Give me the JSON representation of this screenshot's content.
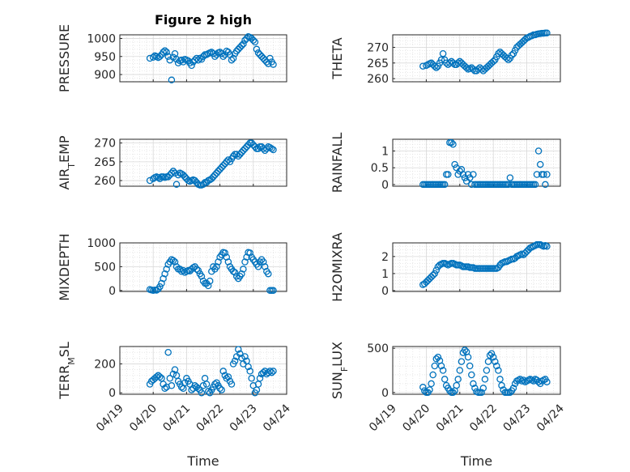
{
  "figure": {
    "title": "Figure 2 high",
    "marker_color": "#0072BD"
  },
  "chart_data": [
    {
      "type": "scatter",
      "ylabel": "PRESSURE",
      "ylabel_sub": "",
      "ylabel_tail": "",
      "ylim": [
        880,
        1010
      ],
      "yticks": [
        900,
        950,
        1000
      ],
      "xlim": [
        19.0,
        24.0
      ],
      "x": [
        19.9,
        20.0,
        20.05,
        20.1,
        20.15,
        20.2,
        20.25,
        20.3,
        20.35,
        20.4,
        20.45,
        20.5,
        20.55,
        20.6,
        20.65,
        20.7,
        20.75,
        20.8,
        20.85,
        20.9,
        20.95,
        21.0,
        21.05,
        21.1,
        21.15,
        21.2,
        21.25,
        21.3,
        21.35,
        21.4,
        21.45,
        21.5,
        21.55,
        21.6,
        21.65,
        21.7,
        21.75,
        21.8,
        21.85,
        21.9,
        21.95,
        22.0,
        22.05,
        22.1,
        22.15,
        22.2,
        22.25,
        22.3,
        22.35,
        22.4,
        22.45,
        22.5,
        22.55,
        22.6,
        22.65,
        22.7,
        22.75,
        22.8,
        22.85,
        22.9,
        22.95,
        23.0,
        23.05,
        23.1,
        23.15,
        23.2,
        23.25,
        23.3,
        23.35,
        23.4,
        23.45,
        23.5,
        23.55,
        23.6
      ],
      "y": [
        945,
        948,
        952,
        950,
        947,
        950,
        955,
        962,
        966,
        962,
        950,
        940,
        885,
        948,
        958,
        942,
        932,
        938,
        940,
        935,
        942,
        940,
        938,
        932,
        925,
        935,
        940,
        945,
        940,
        945,
        942,
        950,
        955,
        955,
        958,
        960,
        962,
        958,
        950,
        955,
        960,
        962,
        958,
        950,
        955,
        965,
        962,
        955,
        940,
        945,
        958,
        965,
        970,
        975,
        980,
        985,
        995,
        1000,
        1005,
        1003,
        1000,
        995,
        990,
        970,
        960,
        955,
        950,
        945,
        940,
        935,
        930,
        945,
        935,
        928
      ]
    },
    {
      "type": "scatter",
      "ylabel": "THETA",
      "ylabel_sub": "",
      "ylabel_tail": "",
      "ylim": [
        259,
        274
      ],
      "yticks": [
        260,
        265,
        270
      ],
      "xlim": [
        19.0,
        24.0
      ],
      "x": [
        19.9,
        20.0,
        20.05,
        20.1,
        20.15,
        20.2,
        20.25,
        20.3,
        20.35,
        20.4,
        20.45,
        20.5,
        20.55,
        20.6,
        20.65,
        20.7,
        20.75,
        20.8,
        20.85,
        20.9,
        20.95,
        21.0,
        21.05,
        21.1,
        21.15,
        21.2,
        21.25,
        21.3,
        21.35,
        21.4,
        21.45,
        21.5,
        21.55,
        21.6,
        21.65,
        21.7,
        21.75,
        21.8,
        21.85,
        21.9,
        21.95,
        22.0,
        22.05,
        22.1,
        22.15,
        22.2,
        22.25,
        22.3,
        22.35,
        22.4,
        22.45,
        22.5,
        22.55,
        22.6,
        22.65,
        22.7,
        22.75,
        22.8,
        22.85,
        22.9,
        22.95,
        23.0,
        23.05,
        23.1,
        23.15,
        23.2,
        23.25,
        23.3,
        23.35,
        23.4,
        23.45,
        23.5,
        23.55,
        23.6
      ],
      "y": [
        264,
        264.2,
        264.5,
        264.8,
        265,
        264.5,
        264,
        263.5,
        264,
        265,
        266,
        268,
        266,
        265,
        264.5,
        265,
        265.5,
        265,
        264.5,
        264.5,
        265,
        265.5,
        265,
        264.5,
        264,
        263.5,
        263,
        263.2,
        263.5,
        263,
        262.5,
        262.5,
        263,
        263.5,
        263,
        262.5,
        263,
        263.5,
        264,
        264.5,
        265,
        265.5,
        266,
        267,
        268,
        268.5,
        268,
        267.5,
        267,
        266.5,
        266,
        266.5,
        267.5,
        268,
        269,
        270,
        270.5,
        271,
        271.5,
        272,
        272.5,
        273,
        273.2,
        273.5,
        273.7,
        274,
        274,
        274.2,
        274.3,
        274.4,
        274.5,
        274.5,
        274.6,
        274.6
      ]
    },
    {
      "type": "scatter",
      "ylabel": "AIR",
      "ylabel_sub": "T",
      "ylabel_tail": "EMP",
      "ylim": [
        258.5,
        271
      ],
      "yticks": [
        260,
        265,
        270
      ],
      "xlim": [
        19.0,
        24.0
      ],
      "x": [
        19.9,
        20.0,
        20.05,
        20.1,
        20.15,
        20.2,
        20.25,
        20.3,
        20.35,
        20.4,
        20.45,
        20.5,
        20.55,
        20.6,
        20.65,
        20.7,
        20.75,
        20.8,
        20.85,
        20.9,
        20.95,
        21.0,
        21.05,
        21.1,
        21.15,
        21.2,
        21.25,
        21.3,
        21.35,
        21.4,
        21.45,
        21.5,
        21.55,
        21.6,
        21.65,
        21.7,
        21.75,
        21.8,
        21.85,
        21.9,
        21.95,
        22.0,
        22.05,
        22.1,
        22.15,
        22.2,
        22.25,
        22.3,
        22.35,
        22.4,
        22.45,
        22.5,
        22.55,
        22.6,
        22.65,
        22.7,
        22.75,
        22.8,
        22.85,
        22.9,
        22.95,
        23.0,
        23.05,
        23.1,
        23.15,
        23.2,
        23.25,
        23.3,
        23.35,
        23.4,
        23.45,
        23.5,
        23.55,
        23.6
      ],
      "y": [
        260,
        260.5,
        260.8,
        261,
        260.8,
        260.5,
        261,
        261,
        260.8,
        261,
        261,
        261.5,
        262,
        262.5,
        262,
        259,
        261.5,
        262,
        261.8,
        261.5,
        261,
        260.5,
        260,
        259.8,
        260,
        260.2,
        260,
        259.5,
        259,
        258.8,
        258.8,
        259,
        259.5,
        259.5,
        260,
        260.2,
        260.5,
        261,
        261.5,
        262,
        262.5,
        263,
        263.5,
        264,
        264.5,
        265,
        265.5,
        265,
        265.8,
        266.5,
        267,
        267,
        266.5,
        267,
        267.5,
        268,
        268.5,
        269,
        269.5,
        270,
        270,
        269.5,
        269,
        268.5,
        268.5,
        269,
        269,
        268.5,
        268,
        268.5,
        269,
        268.8,
        268.5,
        268.2
      ]
    },
    {
      "type": "scatter",
      "ylabel": "RAINFALL",
      "ylabel_sub": "",
      "ylabel_tail": "",
      "ylim": [
        -0.05,
        1.35
      ],
      "yticks": [
        0,
        0.5,
        1
      ],
      "xlim": [
        19.0,
        24.0
      ],
      "x": [
        19.9,
        19.95,
        20.0,
        20.05,
        20.1,
        20.15,
        20.2,
        20.25,
        20.3,
        20.35,
        20.4,
        20.45,
        20.5,
        20.55,
        20.6,
        20.65,
        20.7,
        20.75,
        20.8,
        20.85,
        20.9,
        20.95,
        21.0,
        21.05,
        21.1,
        21.15,
        21.2,
        21.25,
        21.3,
        21.35,
        21.4,
        21.45,
        21.5,
        21.55,
        21.6,
        21.65,
        21.7,
        21.75,
        21.8,
        21.85,
        21.9,
        21.95,
        22.0,
        22.05,
        22.1,
        22.15,
        22.2,
        22.25,
        22.3,
        22.35,
        22.4,
        22.45,
        22.5,
        22.55,
        22.6,
        22.65,
        22.7,
        22.75,
        22.8,
        22.85,
        22.9,
        22.95,
        23.0,
        23.05,
        23.1,
        23.15,
        23.2,
        23.25,
        23.3,
        23.35,
        23.4,
        23.45,
        23.5,
        23.55,
        23.6
      ],
      "y": [
        0,
        0,
        0,
        0,
        0,
        0,
        0,
        0,
        0,
        0,
        0,
        0,
        0,
        0,
        0.3,
        0.3,
        1.25,
        1.25,
        1.2,
        0.6,
        0.5,
        0.3,
        0.4,
        0.45,
        0.3,
        0.2,
        0.1,
        0.3,
        0.2,
        0,
        0.3,
        0,
        0,
        0,
        0,
        0,
        0,
        0,
        0,
        0,
        0,
        0,
        0,
        0,
        0,
        0,
        0,
        0,
        0,
        0,
        0,
        0,
        0.2,
        0,
        0,
        0,
        0,
        0,
        0,
        0,
        0,
        0,
        0,
        0,
        0,
        0,
        0,
        0,
        0.3,
        1.0,
        0.6,
        0.3,
        0.3,
        0,
        0.3
      ]
    },
    {
      "type": "scatter",
      "ylabel": "MIXDEPTH",
      "ylabel_sub": "",
      "ylabel_tail": "",
      "ylim": [
        -20,
        1000
      ],
      "yticks": [
        0,
        500,
        1000
      ],
      "xlim": [
        19.0,
        24.0
      ],
      "x": [
        19.9,
        19.95,
        20.0,
        20.05,
        20.1,
        20.15,
        20.2,
        20.25,
        20.3,
        20.35,
        20.4,
        20.45,
        20.5,
        20.55,
        20.6,
        20.65,
        20.7,
        20.75,
        20.8,
        20.85,
        20.9,
        20.95,
        21.0,
        21.05,
        21.1,
        21.15,
        21.2,
        21.25,
        21.3,
        21.35,
        21.4,
        21.45,
        21.5,
        21.55,
        21.6,
        21.65,
        21.7,
        21.75,
        21.8,
        21.85,
        21.9,
        21.95,
        22.0,
        22.05,
        22.1,
        22.15,
        22.2,
        22.25,
        22.3,
        22.35,
        22.4,
        22.45,
        22.5,
        22.55,
        22.6,
        22.65,
        22.7,
        22.75,
        22.8,
        22.85,
        22.9,
        22.95,
        23.0,
        23.05,
        23.1,
        23.15,
        23.2,
        23.25,
        23.3,
        23.35,
        23.4,
        23.45,
        23.5,
        23.55,
        23.6
      ],
      "y": [
        20,
        10,
        0,
        10,
        5,
        30,
        80,
        150,
        250,
        350,
        450,
        550,
        600,
        650,
        630,
        600,
        500,
        450,
        450,
        400,
        420,
        380,
        400,
        420,
        410,
        450,
        480,
        500,
        450,
        420,
        350,
        300,
        200,
        150,
        150,
        100,
        200,
        400,
        500,
        450,
        500,
        600,
        700,
        750,
        800,
        790,
        700,
        600,
        500,
        450,
        400,
        380,
        300,
        250,
        300,
        350,
        450,
        600,
        700,
        800,
        790,
        700,
        650,
        600,
        550,
        500,
        600,
        650,
        600,
        500,
        400,
        350,
        0,
        0,
        0
      ]
    },
    {
      "type": "scatter",
      "ylabel": "H2OMIXRA",
      "ylabel_sub": "",
      "ylabel_tail": "",
      "ylim": [
        -0.05,
        2.8
      ],
      "yticks": [
        0,
        1,
        2
      ],
      "xlim": [
        19.0,
        24.0
      ],
      "x": [
        19.9,
        19.95,
        20.0,
        20.05,
        20.1,
        20.15,
        20.2,
        20.25,
        20.3,
        20.35,
        20.4,
        20.45,
        20.5,
        20.55,
        20.6,
        20.65,
        20.7,
        20.75,
        20.8,
        20.85,
        20.9,
        20.95,
        21.0,
        21.05,
        21.1,
        21.15,
        21.2,
        21.25,
        21.3,
        21.35,
        21.4,
        21.45,
        21.5,
        21.55,
        21.6,
        21.65,
        21.7,
        21.75,
        21.8,
        21.85,
        21.9,
        21.95,
        22.0,
        22.05,
        22.1,
        22.15,
        22.2,
        22.25,
        22.3,
        22.35,
        22.4,
        22.45,
        22.5,
        22.55,
        22.6,
        22.65,
        22.7,
        22.75,
        22.8,
        22.85,
        22.9,
        22.95,
        23.0,
        23.05,
        23.1,
        23.15,
        23.2,
        23.25,
        23.3,
        23.35,
        23.4,
        23.45,
        23.5,
        23.55,
        23.6
      ],
      "y": [
        0.35,
        0.4,
        0.5,
        0.6,
        0.7,
        0.8,
        0.9,
        1.0,
        1.2,
        1.4,
        1.5,
        1.55,
        1.6,
        1.6,
        1.55,
        1.5,
        1.55,
        1.6,
        1.6,
        1.55,
        1.5,
        1.5,
        1.5,
        1.45,
        1.4,
        1.4,
        1.4,
        1.4,
        1.35,
        1.35,
        1.35,
        1.3,
        1.3,
        1.3,
        1.3,
        1.3,
        1.3,
        1.3,
        1.3,
        1.3,
        1.3,
        1.3,
        1.3,
        1.3,
        1.3,
        1.35,
        1.5,
        1.6,
        1.65,
        1.7,
        1.7,
        1.75,
        1.8,
        1.85,
        1.85,
        1.9,
        2.0,
        2.05,
        2.1,
        2.15,
        2.1,
        2.2,
        2.3,
        2.4,
        2.5,
        2.55,
        2.6,
        2.65,
        2.7,
        2.7,
        2.7,
        2.65,
        2.6,
        2.65,
        2.6
      ]
    },
    {
      "type": "scatter",
      "ylabel": "TERR",
      "ylabel_sub": "M",
      "ylabel_tail": "SL",
      "ylim": [
        -10,
        320
      ],
      "yticks": [
        0,
        200
      ],
      "xlim": [
        19.0,
        24.0
      ],
      "xlabel": "Time",
      "xticks": [
        19,
        20,
        21,
        22,
        23,
        24
      ],
      "xticklabels": [
        "04/19",
        "04/20",
        "04/21",
        "04/22",
        "04/23",
        "04/24"
      ],
      "x": [
        19.9,
        19.95,
        20.0,
        20.05,
        20.1,
        20.15,
        20.2,
        20.25,
        20.3,
        20.35,
        20.4,
        20.45,
        20.5,
        20.55,
        20.6,
        20.65,
        20.7,
        20.75,
        20.8,
        20.85,
        20.9,
        20.95,
        21.0,
        21.05,
        21.1,
        21.15,
        21.2,
        21.25,
        21.3,
        21.35,
        21.4,
        21.45,
        21.5,
        21.55,
        21.6,
        21.65,
        21.7,
        21.75,
        21.8,
        21.85,
        21.9,
        21.95,
        22.0,
        22.05,
        22.1,
        22.15,
        22.2,
        22.25,
        22.3,
        22.35,
        22.4,
        22.45,
        22.5,
        22.55,
        22.6,
        22.65,
        22.7,
        22.75,
        22.8,
        22.85,
        22.9,
        22.95,
        23.0,
        23.05,
        23.1,
        23.15,
        23.2,
        23.25,
        23.3,
        23.35,
        23.4,
        23.45,
        23.5,
        23.55,
        23.6
      ],
      "y": [
        60,
        80,
        90,
        100,
        110,
        120,
        110,
        100,
        60,
        30,
        40,
        280,
        100,
        50,
        130,
        160,
        120,
        80,
        60,
        40,
        30,
        70,
        100,
        80,
        60,
        20,
        30,
        50,
        40,
        30,
        20,
        0,
        50,
        100,
        60,
        10,
        0,
        20,
        40,
        60,
        70,
        50,
        30,
        20,
        150,
        120,
        100,
        110,
        80,
        60,
        200,
        220,
        250,
        300,
        270,
        240,
        200,
        250,
        220,
        180,
        150,
        100,
        50,
        0,
        20,
        60,
        100,
        130,
        140,
        150,
        130,
        140,
        150,
        140,
        150
      ]
    },
    {
      "type": "scatter",
      "ylabel": "SUN",
      "ylabel_sub": "F",
      "ylabel_tail": "LUX",
      "ylim": [
        -20,
        520
      ],
      "yticks": [
        0,
        500
      ],
      "xlim": [
        19.0,
        24.0
      ],
      "xlabel": "Time",
      "xticks": [
        19,
        20,
        21,
        22,
        23,
        24
      ],
      "xticklabels": [
        "04/19",
        "04/20",
        "04/21",
        "04/22",
        "04/23",
        "04/24"
      ],
      "x": [
        19.9,
        19.95,
        20.0,
        20.05,
        20.1,
        20.15,
        20.2,
        20.25,
        20.3,
        20.35,
        20.4,
        20.45,
        20.5,
        20.55,
        20.6,
        20.65,
        20.7,
        20.75,
        20.8,
        20.85,
        20.9,
        20.95,
        21.0,
        21.05,
        21.1,
        21.15,
        21.2,
        21.25,
        21.3,
        21.35,
        21.4,
        21.45,
        21.5,
        21.55,
        21.6,
        21.65,
        21.7,
        21.75,
        21.8,
        21.85,
        21.9,
        21.95,
        22.0,
        22.05,
        22.1,
        22.15,
        22.2,
        22.25,
        22.3,
        22.35,
        22.4,
        22.45,
        22.5,
        22.55,
        22.6,
        22.65,
        22.7,
        22.75,
        22.8,
        22.85,
        22.9,
        22.95,
        23.0,
        23.05,
        23.1,
        23.15,
        23.2,
        23.25,
        23.3,
        23.35,
        23.4,
        23.45,
        23.5,
        23.55,
        23.6
      ],
      "y": [
        60,
        20,
        0,
        0,
        30,
        100,
        200,
        300,
        380,
        400,
        360,
        300,
        250,
        150,
        80,
        50,
        20,
        0,
        0,
        20,
        80,
        150,
        250,
        350,
        450,
        480,
        460,
        400,
        300,
        200,
        100,
        50,
        10,
        0,
        0,
        0,
        50,
        150,
        250,
        350,
        420,
        440,
        400,
        350,
        300,
        250,
        150,
        80,
        30,
        0,
        0,
        0,
        0,
        20,
        50,
        100,
        130,
        140,
        150,
        130,
        140,
        120,
        130,
        140,
        150,
        140,
        130,
        150,
        140,
        120,
        100,
        130,
        140,
        150,
        120
      ]
    }
  ]
}
